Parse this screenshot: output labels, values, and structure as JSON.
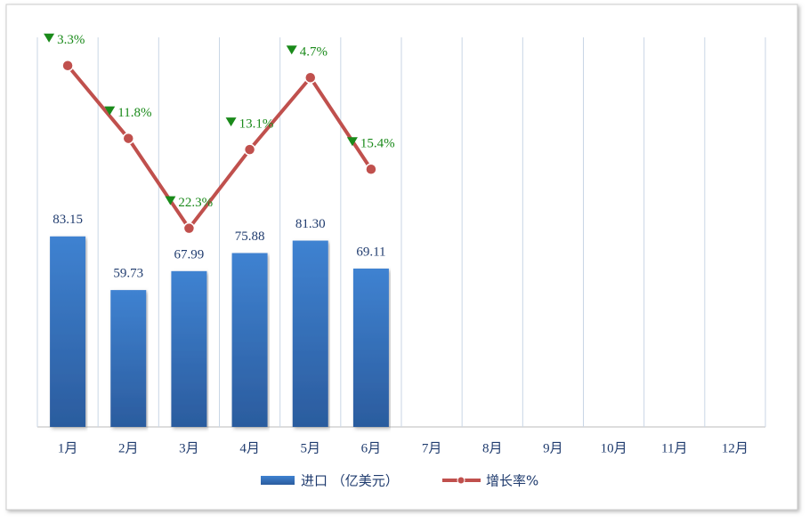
{
  "chart_data": {
    "type": "bar",
    "categories": [
      "1月",
      "2月",
      "3月",
      "4月",
      "5月",
      "6月",
      "7月",
      "8月",
      "9月",
      "10月",
      "11月",
      "12月"
    ],
    "series": [
      {
        "name": "进口 （亿美元）",
        "type": "bar",
        "color": "#3a78c3",
        "values": [
          83.15,
          59.73,
          67.99,
          75.88,
          81.3,
          69.11,
          null,
          null,
          null,
          null,
          null,
          null
        ],
        "value_labels": [
          "83.15",
          "59.73",
          "67.99",
          "75.88",
          "81.30",
          "69.11",
          null,
          null,
          null,
          null,
          null,
          null
        ]
      },
      {
        "name": "增长率%",
        "type": "line",
        "axis": "y2",
        "color": "#c0504d",
        "values": [
          -3.3,
          -11.8,
          -22.3,
          -13.1,
          -4.7,
          -15.4,
          null,
          null,
          null,
          null,
          null,
          null
        ],
        "value_labels": [
          "3.3%",
          "11.8%",
          "22.3%",
          "13.1%",
          "4.7%",
          "15.4%",
          null,
          null,
          null,
          null,
          null,
          null
        ]
      }
    ],
    "ylim": [
      0,
      170
    ],
    "y2lim": [
      -45.5,
      0
    ],
    "grid": true
  }
}
